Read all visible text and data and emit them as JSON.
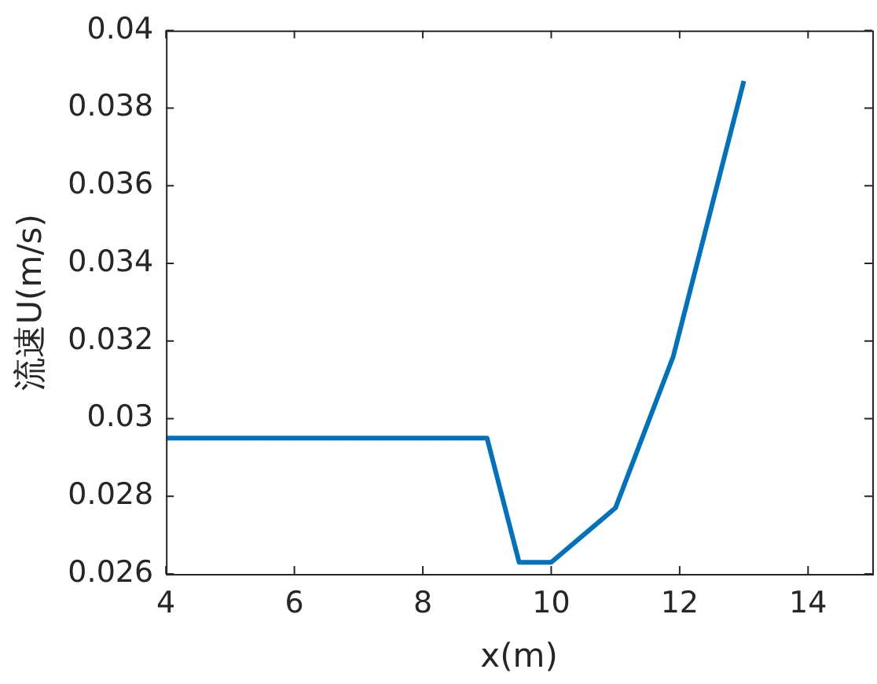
{
  "chart_data": {
    "type": "line",
    "xlabel": "x(m)",
    "ylabel": "流速U(m/s)",
    "x": [
      4,
      9,
      9.5,
      10,
      11,
      11.9,
      13
    ],
    "series": [
      {
        "color": "#0072bd",
        "values": [
          0.0295,
          0.0295,
          0.0263,
          0.0263,
          0.0277,
          0.0316,
          0.0387
        ]
      }
    ],
    "xlim": [
      4,
      15
    ],
    "xticks": [
      4,
      6,
      8,
      10,
      12,
      14
    ],
    "ylim": [
      0.026,
      0.04
    ],
    "yticks": [
      0.026,
      0.028,
      0.03,
      0.032,
      0.034,
      0.036,
      0.038,
      0.04
    ],
    "grid": false,
    "legend": false,
    "marker": "none",
    "line_style": "solid"
  }
}
